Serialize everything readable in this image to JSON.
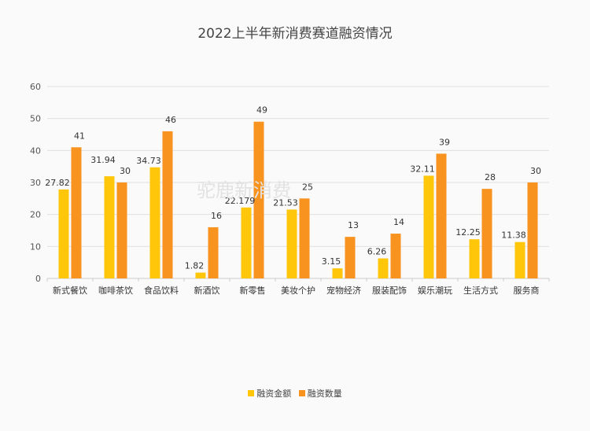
{
  "chart_data": {
    "type": "bar",
    "title": "2022上半年新消费赛道融资情况",
    "watermark": "驼鹿新消费",
    "categories": [
      "新式餐饮",
      "咖啡茶饮",
      "食品饮料",
      "新酒饮",
      "新零售",
      "美妆个护",
      "宠物经济",
      "服装配饰",
      "娱乐潮玩",
      "生活方式",
      "服务商"
    ],
    "series": [
      {
        "name": "融资金额",
        "color": "#ffc60a",
        "values": [
          27.82,
          31.94,
          34.73,
          1.82,
          22.179,
          21.53,
          3.15,
          6.26,
          32.11,
          12.25,
          11.38
        ],
        "labels": [
          "27.82",
          "31.94",
          "34.73",
          "1.82",
          "22.179",
          "21.53",
          "3.15",
          "6.26",
          "32.11",
          "12.25",
          "11.38"
        ]
      },
      {
        "name": "融资数量",
        "color": "#f7931e",
        "values": [
          41,
          30,
          46,
          16,
          49,
          25,
          13,
          14,
          39,
          28,
          30
        ],
        "labels": [
          "41",
          "30",
          "46",
          "16",
          "49",
          "25",
          "13",
          "14",
          "39",
          "28",
          "30"
        ]
      }
    ],
    "ylim": [
      0,
      60
    ],
    "yticks": [
      "0",
      "10",
      "20",
      "30",
      "40",
      "50",
      "60"
    ],
    "grid": true,
    "legend": "bottom"
  }
}
